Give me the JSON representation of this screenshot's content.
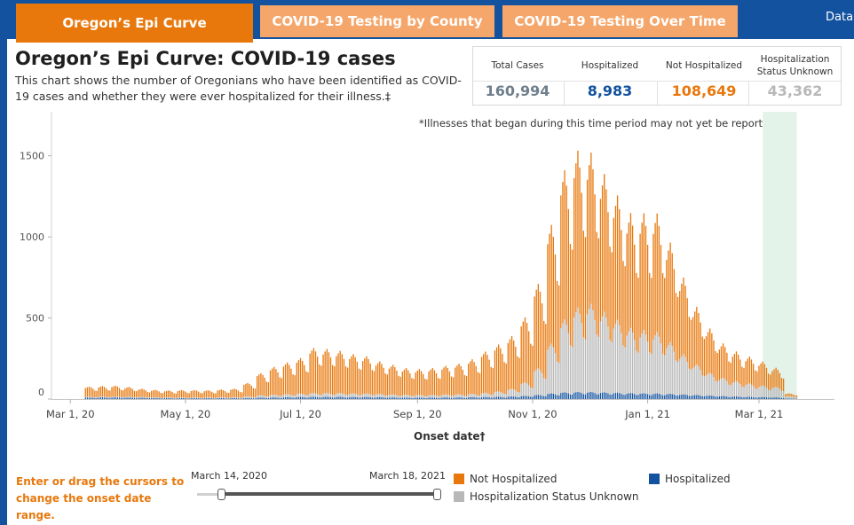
{
  "tabs": [
    {
      "label": "Oregon’s Epi Curve"
    },
    {
      "label": "COVID-19 Testing by County"
    },
    {
      "label": "COVID-19 Testing Over Time"
    },
    {
      "label": "Data"
    }
  ],
  "page": {
    "title": "Oregon’s Epi Curve: COVID-19 cases",
    "subtitle": "This chart shows the number of Oregonians who have been identified as COVID-19 cases and whether they were ever hospitalized for their illness.‡"
  },
  "summary": [
    {
      "label": "Total Cases",
      "value": "160,994",
      "color": "#6f7f8c"
    },
    {
      "label": "Hospitalized",
      "value": "8,983",
      "color": "#13529e"
    },
    {
      "label": "Not Hospitalized",
      "value": "108,649",
      "color": "#e8780c"
    },
    {
      "label": "Hospitalization Status Unknown",
      "value": "43,362",
      "color": "#b8b8b8"
    }
  ],
  "chart_note": "*Illnesses that began during this time period may not yet be reported.",
  "chart_data": {
    "type": "bar",
    "stacked": true,
    "xlabel": "Onset date†",
    "ylabel": "",
    "ylim": [
      0,
      1750
    ],
    "yticks": [
      0,
      500,
      1000,
      1500
    ],
    "x_range": [
      "2020-02-20",
      "2021-04-10"
    ],
    "xticks": [
      {
        "date": "2020-03-01",
        "label": "Mar 1, 20"
      },
      {
        "date": "2020-05-01",
        "label": "May 1, 20"
      },
      {
        "date": "2020-07-01",
        "label": "Jul 1, 20"
      },
      {
        "date": "2020-09-01",
        "label": "Sep 1, 20"
      },
      {
        "date": "2020-11-01",
        "label": "Nov 1, 20"
      },
      {
        "date": "2021-01-01",
        "label": "Jan 1, 21"
      },
      {
        "date": "2021-03-01",
        "label": "Mar 1, 21"
      }
    ],
    "grid": false,
    "shaded_period": {
      "start": "2021-03-03",
      "end": "2021-03-21"
    },
    "series_order": [
      "Hospitalized",
      "Hospitalization Status Unknown",
      "Not Hospitalized"
    ],
    "colors": {
      "Hospitalized": "#13529e",
      "Hospitalization Status Unknown": "#b8b8b8",
      "Not Hospitalized": "#e8780c",
      "shade": "#e3f3ea"
    },
    "series_note": "Weekly average daily counts by onset date (daily bars drawn with weekday variation)",
    "weeks": [
      {
        "week_start": "2020-03-09",
        "hospitalized": 8,
        "unknown": 5,
        "not_hospitalized": 52
      },
      {
        "week_start": "2020-03-16",
        "hospitalized": 9,
        "unknown": 5,
        "not_hospitalized": 54
      },
      {
        "week_start": "2020-03-23",
        "hospitalized": 9,
        "unknown": 5,
        "not_hospitalized": 56
      },
      {
        "week_start": "2020-03-30",
        "hospitalized": 8,
        "unknown": 5,
        "not_hospitalized": 50
      },
      {
        "week_start": "2020-04-06",
        "hospitalized": 7,
        "unknown": 5,
        "not_hospitalized": 42
      },
      {
        "week_start": "2020-04-13",
        "hospitalized": 6,
        "unknown": 4,
        "not_hospitalized": 38
      },
      {
        "week_start": "2020-04-20",
        "hospitalized": 5,
        "unknown": 4,
        "not_hospitalized": 36
      },
      {
        "week_start": "2020-04-27",
        "hospitalized": 5,
        "unknown": 4,
        "not_hospitalized": 38
      },
      {
        "week_start": "2020-05-04",
        "hospitalized": 5,
        "unknown": 4,
        "not_hospitalized": 38
      },
      {
        "week_start": "2020-05-11",
        "hospitalized": 5,
        "unknown": 4,
        "not_hospitalized": 37
      },
      {
        "week_start": "2020-05-18",
        "hospitalized": 5,
        "unknown": 5,
        "not_hospitalized": 40
      },
      {
        "week_start": "2020-05-25",
        "hospitalized": 5,
        "unknown": 5,
        "not_hospitalized": 44
      },
      {
        "week_start": "2020-06-01",
        "hospitalized": 6,
        "unknown": 8,
        "not_hospitalized": 70
      },
      {
        "week_start": "2020-06-08",
        "hospitalized": 8,
        "unknown": 12,
        "not_hospitalized": 115
      },
      {
        "week_start": "2020-06-15",
        "hospitalized": 9,
        "unknown": 14,
        "not_hospitalized": 145
      },
      {
        "week_start": "2020-06-22",
        "hospitalized": 10,
        "unknown": 16,
        "not_hospitalized": 165
      },
      {
        "week_start": "2020-06-29",
        "hospitalized": 11,
        "unknown": 18,
        "not_hospitalized": 185
      },
      {
        "week_start": "2020-07-06",
        "hospitalized": 12,
        "unknown": 20,
        "not_hospitalized": 235
      },
      {
        "week_start": "2020-07-13",
        "hospitalized": 12,
        "unknown": 20,
        "not_hospitalized": 230
      },
      {
        "week_start": "2020-07-20",
        "hospitalized": 12,
        "unknown": 20,
        "not_hospitalized": 220
      },
      {
        "week_start": "2020-07-27",
        "hospitalized": 11,
        "unknown": 19,
        "not_hospitalized": 205
      },
      {
        "week_start": "2020-08-03",
        "hospitalized": 11,
        "unknown": 18,
        "not_hospitalized": 195
      },
      {
        "week_start": "2020-08-10",
        "hospitalized": 10,
        "unknown": 17,
        "not_hospitalized": 170
      },
      {
        "week_start": "2020-08-17",
        "hospitalized": 9,
        "unknown": 15,
        "not_hospitalized": 155
      },
      {
        "week_start": "2020-08-24",
        "hospitalized": 8,
        "unknown": 14,
        "not_hospitalized": 140
      },
      {
        "week_start": "2020-08-31",
        "hospitalized": 8,
        "unknown": 14,
        "not_hospitalized": 135
      },
      {
        "week_start": "2020-09-07",
        "hospitalized": 8,
        "unknown": 14,
        "not_hospitalized": 140
      },
      {
        "week_start": "2020-09-14",
        "hospitalized": 9,
        "unknown": 15,
        "not_hospitalized": 150
      },
      {
        "week_start": "2020-09-21",
        "hospitalized": 9,
        "unknown": 16,
        "not_hospitalized": 160
      },
      {
        "week_start": "2020-09-28",
        "hospitalized": 10,
        "unknown": 18,
        "not_hospitalized": 180
      },
      {
        "week_start": "2020-10-05",
        "hospitalized": 11,
        "unknown": 22,
        "not_hospitalized": 215
      },
      {
        "week_start": "2020-10-12",
        "hospitalized": 12,
        "unknown": 28,
        "not_hospitalized": 245
      },
      {
        "week_start": "2020-10-19",
        "hospitalized": 14,
        "unknown": 40,
        "not_hospitalized": 275
      },
      {
        "week_start": "2020-10-26",
        "hospitalized": 17,
        "unknown": 70,
        "not_hospitalized": 340
      },
      {
        "week_start": "2020-11-02",
        "hospitalized": 22,
        "unknown": 140,
        "not_hospitalized": 440
      },
      {
        "week_start": "2020-11-09",
        "hospitalized": 30,
        "unknown": 260,
        "not_hospitalized": 620
      },
      {
        "week_start": "2020-11-16",
        "hospitalized": 36,
        "unknown": 380,
        "not_hospitalized": 780
      },
      {
        "week_start": "2020-11-23",
        "hospitalized": 38,
        "unknown": 440,
        "not_hospitalized": 820
      },
      {
        "week_start": "2020-11-30",
        "hospitalized": 38,
        "unknown": 460,
        "not_hospitalized": 790
      },
      {
        "week_start": "2020-12-07",
        "hospitalized": 36,
        "unknown": 420,
        "not_hospitalized": 720
      },
      {
        "week_start": "2020-12-14",
        "hospitalized": 34,
        "unknown": 380,
        "not_hospitalized": 650
      },
      {
        "week_start": "2020-12-21",
        "hospitalized": 32,
        "unknown": 340,
        "not_hospitalized": 600
      },
      {
        "week_start": "2020-12-28",
        "hospitalized": 31,
        "unknown": 330,
        "not_hospitalized": 610
      },
      {
        "week_start": "2021-01-04",
        "hospitalized": 30,
        "unknown": 320,
        "not_hospitalized": 620
      },
      {
        "week_start": "2021-01-11",
        "hospitalized": 28,
        "unknown": 270,
        "not_hospitalized": 520
      },
      {
        "week_start": "2021-01-18",
        "hospitalized": 25,
        "unknown": 210,
        "not_hospitalized": 400
      },
      {
        "week_start": "2021-01-25",
        "hospitalized": 22,
        "unknown": 160,
        "not_hospitalized": 300
      },
      {
        "week_start": "2021-02-01",
        "hospitalized": 19,
        "unknown": 120,
        "not_hospitalized": 230
      },
      {
        "week_start": "2021-02-08",
        "hospitalized": 16,
        "unknown": 95,
        "not_hospitalized": 180
      },
      {
        "week_start": "2021-02-15",
        "hospitalized": 14,
        "unknown": 80,
        "not_hospitalized": 155
      },
      {
        "week_start": "2021-02-22",
        "hospitalized": 12,
        "unknown": 70,
        "not_hospitalized": 140
      },
      {
        "week_start": "2021-03-01",
        "hospitalized": 11,
        "unknown": 60,
        "not_hospitalized": 125
      },
      {
        "week_start": "2021-03-08",
        "hospitalized": 9,
        "unknown": 55,
        "not_hospitalized": 100
      },
      {
        "week_start": "2021-03-15",
        "hospitalized": 3,
        "unknown": 12,
        "not_hospitalized": 15
      }
    ]
  },
  "date_range": {
    "hint": "Enter or drag the cursors to change the onset date range.",
    "start": "March 14, 2020",
    "end": "March 18, 2021"
  },
  "legend": [
    {
      "label": "Not Hospitalized",
      "color": "#e8780c"
    },
    {
      "label": "Hospitalization Status Unknown",
      "color": "#b8b8b8"
    },
    {
      "label": "Hospitalized",
      "color": "#13529e"
    }
  ]
}
